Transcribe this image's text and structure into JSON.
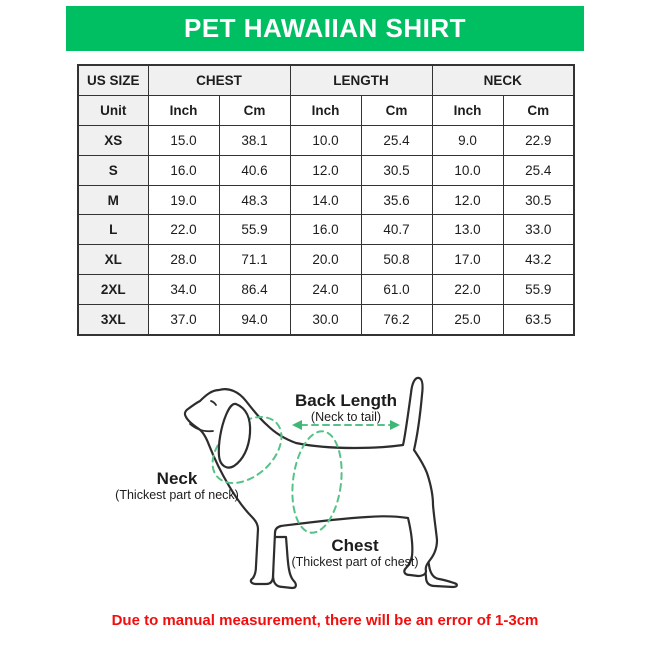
{
  "banner": {
    "title": "PET HAWAIIAN SHIRT",
    "bg_color": "#00bf63",
    "text_color": "#ffffff"
  },
  "table": {
    "group_headers": {
      "size": "US SIZE",
      "chest": "CHEST",
      "length": "LENGTH",
      "neck": "NECK"
    },
    "unit_row": {
      "label": "Unit",
      "units": [
        "Inch",
        "Cm",
        "Inch",
        "Cm",
        "Inch",
        "Cm"
      ]
    },
    "rows": [
      {
        "size": "XS",
        "values": [
          "15.0",
          "38.1",
          "10.0",
          "25.4",
          "9.0",
          "22.9"
        ]
      },
      {
        "size": "S",
        "values": [
          "16.0",
          "40.6",
          "12.0",
          "30.5",
          "10.0",
          "25.4"
        ]
      },
      {
        "size": "M",
        "values": [
          "19.0",
          "48.3",
          "14.0",
          "35.6",
          "12.0",
          "30.5"
        ]
      },
      {
        "size": "L",
        "values": [
          "22.0",
          "55.9",
          "16.0",
          "40.7",
          "13.0",
          "33.0"
        ]
      },
      {
        "size": "XL",
        "values": [
          "28.0",
          "71.1",
          "20.0",
          "50.8",
          "17.0",
          "43.2"
        ]
      },
      {
        "size": "2XL",
        "values": [
          "34.0",
          "86.4",
          "24.0",
          "61.0",
          "22.0",
          "55.9"
        ]
      },
      {
        "size": "3XL",
        "values": [
          "37.0",
          "94.0",
          "30.0",
          "76.2",
          "25.0",
          "63.5"
        ]
      }
    ],
    "header_bg": "#f0f0f0",
    "border_color": "#333333"
  },
  "diagram": {
    "back_length_label": "Back Length",
    "back_length_sub": "(Neck to tail)",
    "neck_label": "Neck",
    "neck_sub": "(Thickest part of neck)",
    "chest_label": "Chest",
    "chest_sub": "(Thickest part of chest)",
    "dash_color": "#57c287",
    "arrow_color": "#3eb874",
    "outline_color": "#2d2d2d"
  },
  "note": {
    "text": "Due to manual measurement, there will be an error of 1-3cm",
    "color": "#f30d0d"
  }
}
